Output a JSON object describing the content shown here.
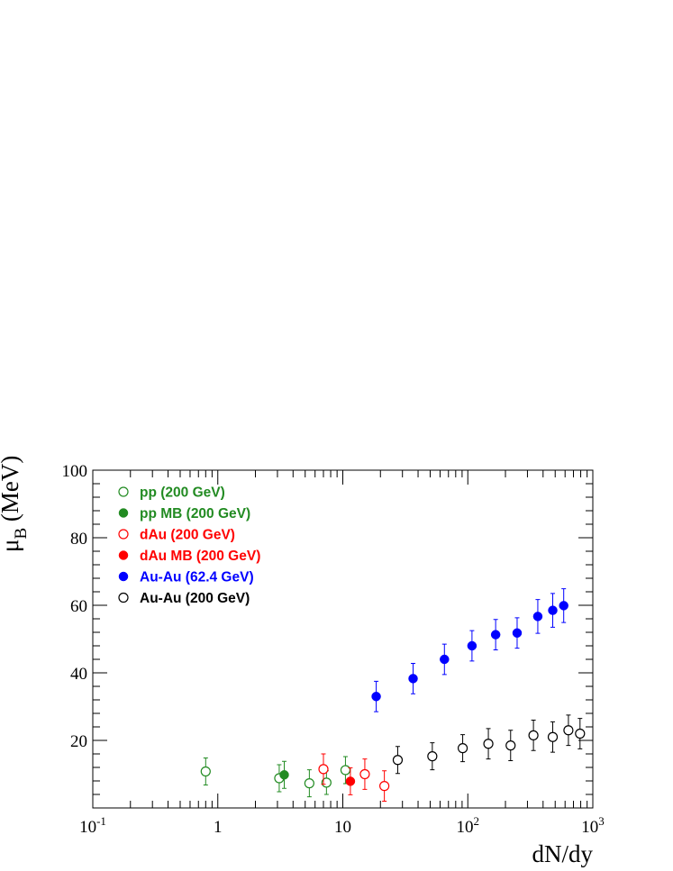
{
  "chart_data": {
    "type": "scatter",
    "title": "",
    "xlabel": "dN/dy",
    "ylabel_main": "μ",
    "ylabel_sub": "B",
    "ylabel_unit": " (MeV)",
    "xscale": "log",
    "xlim": [
      0.1,
      1000
    ],
    "ylim": [
      0,
      100
    ],
    "x_ticks": [
      {
        "value": 0.1,
        "base": "10",
        "exp": "-1"
      },
      {
        "value": 1,
        "base": "1",
        "exp": ""
      },
      {
        "value": 10,
        "base": "10",
        "exp": ""
      },
      {
        "value": 100,
        "base": "10",
        "exp": "2"
      },
      {
        "value": 1000,
        "base": "10",
        "exp": "3"
      }
    ],
    "y_ticks": [
      {
        "value": 20,
        "label": "20"
      },
      {
        "value": 40,
        "label": "40"
      },
      {
        "value": 60,
        "label": "60"
      },
      {
        "value": 80,
        "label": "80"
      },
      {
        "value": 100,
        "label": "100"
      }
    ],
    "grid": false,
    "legend_position": "top-left",
    "series": [
      {
        "name": "pp (200 GeV)",
        "color": "#228B22",
        "marker": "open-circle",
        "points": [
          {
            "x": 0.8,
            "y": 10.8,
            "err": 4.0
          },
          {
            "x": 3.1,
            "y": 8.8,
            "err": 4.0
          },
          {
            "x": 5.4,
            "y": 7.3,
            "err": 4.0
          },
          {
            "x": 7.4,
            "y": 7.5,
            "err": 3.5
          },
          {
            "x": 10.5,
            "y": 11.2,
            "err": 4.0
          }
        ]
      },
      {
        "name": "pp MB (200 GeV)",
        "color": "#228B22",
        "marker": "filled-circle",
        "points": [
          {
            "x": 3.4,
            "y": 9.8,
            "err": 4.0
          }
        ]
      },
      {
        "name": "dAu (200 GeV)",
        "color": "#FF0000",
        "marker": "open-circle",
        "points": [
          {
            "x": 7.0,
            "y": 11.5,
            "err": 4.5
          },
          {
            "x": 15.0,
            "y": 10.0,
            "err": 4.5
          },
          {
            "x": 21.5,
            "y": 6.5,
            "err": 4.5
          }
        ]
      },
      {
        "name": "dAu MB (200 GeV)",
        "color": "#FF0000",
        "marker": "filled-circle",
        "points": [
          {
            "x": 11.5,
            "y": 7.9,
            "err": 4.0
          }
        ]
      },
      {
        "name": "Au-Au (62.4 GeV)",
        "color": "#0000FF",
        "marker": "filled-circle",
        "points": [
          {
            "x": 18.5,
            "y": 33.0,
            "err": 4.5
          },
          {
            "x": 36.5,
            "y": 38.3,
            "err": 4.5
          },
          {
            "x": 65.0,
            "y": 44.0,
            "err": 4.5
          },
          {
            "x": 108.0,
            "y": 48.0,
            "err": 4.5
          },
          {
            "x": 167.0,
            "y": 51.3,
            "err": 4.5
          },
          {
            "x": 248.0,
            "y": 51.8,
            "err": 4.5
          },
          {
            "x": 363.0,
            "y": 56.7,
            "err": 5.0
          },
          {
            "x": 478.0,
            "y": 58.5,
            "err": 5.0
          },
          {
            "x": 585.0,
            "y": 59.9,
            "err": 5.0
          }
        ]
      },
      {
        "name": "Au-Au (200 GeV)",
        "color": "#000000",
        "marker": "open-circle",
        "points": [
          {
            "x": 27.5,
            "y": 14.2,
            "err": 4.0
          },
          {
            "x": 52.0,
            "y": 15.3,
            "err": 4.0
          },
          {
            "x": 91.0,
            "y": 17.7,
            "err": 4.0
          },
          {
            "x": 146.0,
            "y": 19.0,
            "err": 4.5
          },
          {
            "x": 220.0,
            "y": 18.5,
            "err": 4.5
          },
          {
            "x": 335.0,
            "y": 21.5,
            "err": 4.5
          },
          {
            "x": 478.0,
            "y": 21.0,
            "err": 4.5
          },
          {
            "x": 638.0,
            "y": 23.0,
            "err": 4.5
          },
          {
            "x": 790.0,
            "y": 22.0,
            "err": 4.5
          }
        ]
      }
    ]
  }
}
